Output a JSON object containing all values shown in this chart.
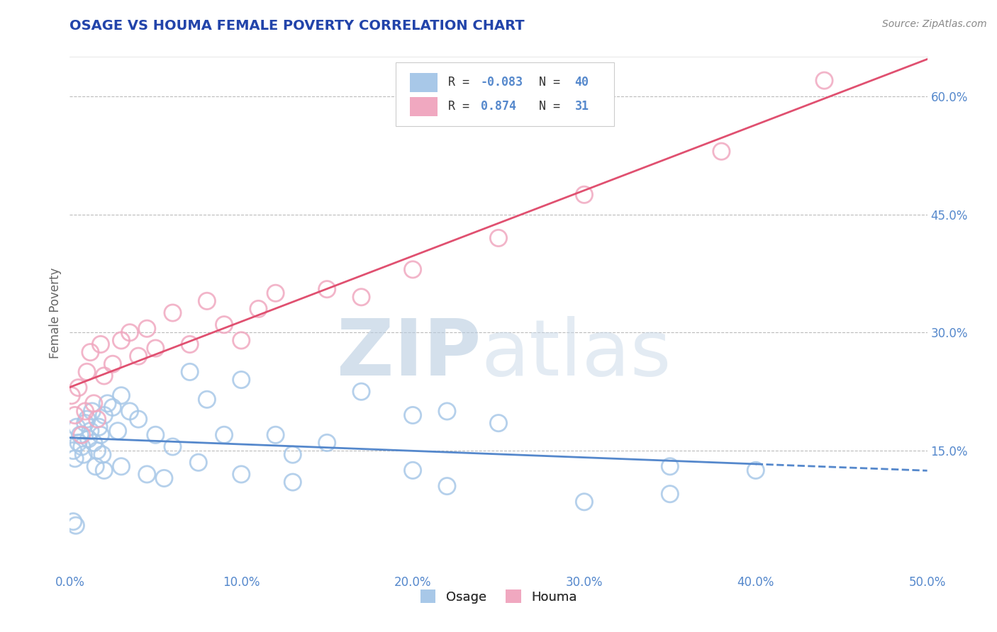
{
  "title": "OSAGE VS HOUMA FEMALE POVERTY CORRELATION CHART",
  "source": "Source: ZipAtlas.com",
  "ylabel": "Female Poverty",
  "xlim": [
    0.0,
    50.0
  ],
  "ylim": [
    0.0,
    65.0
  ],
  "xticks": [
    0.0,
    10.0,
    20.0,
    30.0,
    40.0,
    50.0
  ],
  "yticks_right": [
    15.0,
    30.0,
    45.0,
    60.0
  ],
  "osage_R": -0.083,
  "osage_N": 40,
  "houma_R": 0.874,
  "houma_N": 31,
  "osage_color": "#a8c8e8",
  "houma_color": "#f0a8c0",
  "osage_line_color": "#5588cc",
  "houma_line_color": "#e05070",
  "background_color": "#ffffff",
  "grid_color": "#bbbbbb",
  "title_color": "#2244aa",
  "label_color": "#5588cc",
  "osage_x": [
    0.2,
    0.3,
    0.4,
    0.5,
    0.6,
    0.7,
    0.8,
    0.9,
    1.0,
    1.1,
    1.2,
    1.3,
    1.4,
    1.5,
    1.6,
    1.7,
    1.8,
    1.9,
    2.0,
    2.2,
    2.5,
    2.8,
    3.0,
    3.5,
    4.0,
    5.0,
    6.0,
    7.0,
    8.0,
    9.0,
    10.0,
    12.0,
    13.0,
    15.0,
    17.0,
    20.0,
    22.0,
    25.0,
    35.0,
    40.0
  ],
  "osage_y": [
    15.0,
    14.0,
    18.0,
    16.0,
    17.0,
    15.5,
    14.5,
    18.5,
    19.0,
    16.5,
    17.5,
    20.0,
    16.0,
    13.0,
    15.0,
    18.0,
    17.0,
    14.5,
    19.5,
    21.0,
    20.5,
    17.5,
    22.0,
    20.0,
    19.0,
    17.0,
    15.5,
    25.0,
    21.5,
    17.0,
    24.0,
    17.0,
    14.5,
    16.0,
    22.5,
    19.5,
    20.0,
    18.5,
    13.0,
    12.5
  ],
  "houma_x": [
    0.1,
    0.3,
    0.5,
    0.7,
    0.9,
    1.0,
    1.2,
    1.4,
    1.6,
    1.8,
    2.0,
    2.5,
    3.0,
    3.5,
    4.0,
    4.5,
    5.0,
    6.0,
    7.0,
    8.0,
    9.0,
    10.0,
    11.0,
    12.0,
    15.0,
    17.0,
    20.0,
    25.0,
    30.0,
    38.0,
    44.0
  ],
  "houma_y": [
    22.0,
    19.5,
    23.0,
    17.0,
    20.0,
    25.0,
    27.5,
    21.0,
    19.0,
    28.5,
    24.5,
    26.0,
    29.0,
    30.0,
    27.0,
    30.5,
    28.0,
    32.5,
    28.5,
    34.0,
    31.0,
    29.0,
    33.0,
    35.0,
    35.5,
    34.5,
    38.0,
    42.0,
    47.5,
    53.0,
    62.0
  ],
  "osage_2_x": [
    0.2,
    0.35,
    2.0,
    3.0,
    4.5,
    5.5,
    7.5,
    10.0,
    13.0,
    20.0,
    22.0,
    30.0,
    35.0
  ],
  "osage_2_y": [
    6.0,
    5.5,
    12.5,
    13.0,
    12.0,
    11.5,
    13.5,
    12.0,
    11.0,
    12.5,
    10.5,
    8.5,
    9.5
  ]
}
